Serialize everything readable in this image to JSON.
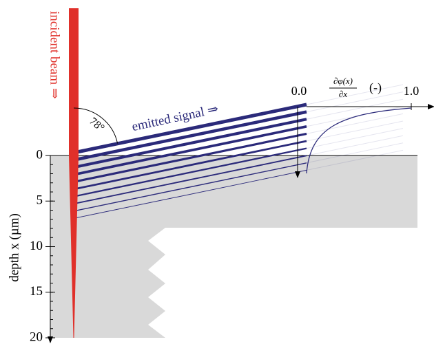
{
  "beam_label": "incident beam ⇒",
  "signal_label": "emitted signal ⇒",
  "angle_label": "78°",
  "derivative_axis": {
    "start_label": "0.0",
    "end_label": "1.0",
    "numerator": "∂φ(x)",
    "denominator": "∂x",
    "unit": "(-)"
  },
  "depth_axis": {
    "label": "depth x (µm)",
    "ticks": [
      0,
      5,
      10,
      15,
      20
    ]
  }
}
